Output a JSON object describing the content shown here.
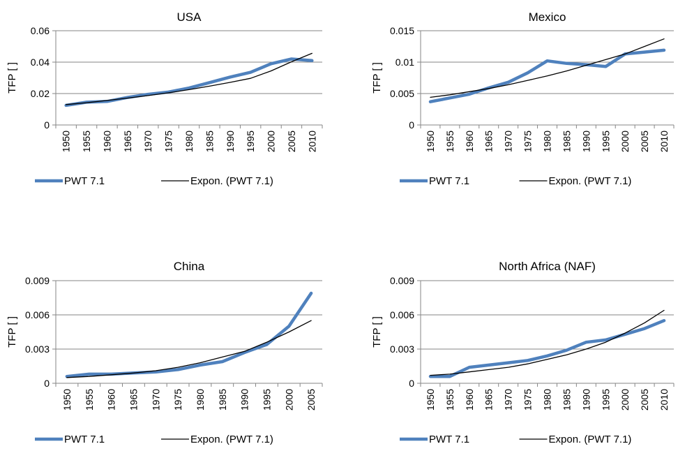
{
  "chart_data": [
    {
      "type": "line",
      "title": "USA",
      "ylabel": "TFP  [ ]",
      "xlabel": "",
      "ylim": [
        0,
        0.06
      ],
      "yticks": [
        0,
        0.02,
        0.04,
        0.06
      ],
      "ytick_labels": [
        "0",
        "0.02",
        "0.04",
        "0.06"
      ],
      "x": [
        1950,
        1955,
        1960,
        1965,
        1970,
        1975,
        1980,
        1985,
        1990,
        1995,
        2000,
        2005,
        2010
      ],
      "grid": "horizontal",
      "legend_position": "bottom",
      "series": [
        {
          "name": "PWT 7.1",
          "color": "#4F81BD",
          "style": "thick",
          "values": [
            0.0125,
            0.0145,
            0.015,
            0.0175,
            0.0195,
            0.021,
            0.0235,
            0.027,
            0.0305,
            0.0335,
            0.039,
            0.042,
            0.041
          ]
        },
        {
          "name": "Expon. (PWT 7.1)",
          "color": "#000000",
          "style": "thin",
          "values": [
            0.013,
            0.0142,
            0.0156,
            0.0171,
            0.0187,
            0.0205,
            0.0225,
            0.0247,
            0.0271,
            0.0297,
            0.0344,
            0.0402,
            0.0456
          ]
        }
      ]
    },
    {
      "type": "line",
      "title": "Mexico",
      "ylabel": "TFP  [ ]",
      "xlabel": "",
      "ylim": [
        0,
        0.015
      ],
      "yticks": [
        0,
        0.005,
        0.01,
        0.015
      ],
      "ytick_labels": [
        "0",
        "0.005",
        "0.01",
        "0.015"
      ],
      "x": [
        1950,
        1955,
        1960,
        1965,
        1970,
        1975,
        1980,
        1985,
        1990,
        1995,
        2000,
        2005,
        2010
      ],
      "grid": "horizontal",
      "legend_position": "bottom",
      "series": [
        {
          "name": "PWT 7.1",
          "color": "#4F81BD",
          "style": "thick",
          "values": [
            0.0037,
            0.0043,
            0.0049,
            0.0059,
            0.0068,
            0.0083,
            0.0102,
            0.0098,
            0.0096,
            0.0093,
            0.0113,
            0.0116,
            0.0119
          ]
        },
        {
          "name": "Expon. (PWT 7.1)",
          "color": "#000000",
          "style": "thin",
          "values": [
            0.0044,
            0.0048,
            0.0053,
            0.0058,
            0.0064,
            0.0071,
            0.0078,
            0.0086,
            0.0095,
            0.0104,
            0.0113,
            0.0125,
            0.0137
          ]
        }
      ]
    },
    {
      "type": "line",
      "title": "China",
      "ylabel": "TFP  [ ]",
      "xlabel": "",
      "ylim": [
        0,
        0.009
      ],
      "yticks": [
        0,
        0.003,
        0.006,
        0.009
      ],
      "ytick_labels": [
        "0",
        "0.003",
        "0.006",
        "0.009"
      ],
      "x": [
        1950,
        1955,
        1960,
        1965,
        1970,
        1975,
        1980,
        1985,
        1990,
        1995,
        2000,
        2005
      ],
      "grid": "horizontal",
      "legend_position": "bottom",
      "series": [
        {
          "name": "PWT 7.1",
          "color": "#4F81BD",
          "style": "thick",
          "values": [
            0.0006,
            0.0008,
            0.0008,
            0.0009,
            0.001,
            0.0012,
            0.0016,
            0.0019,
            0.0027,
            0.0034,
            0.005,
            0.0079
          ]
        },
        {
          "name": "Expon. (PWT 7.1)",
          "color": "#000000",
          "style": "thin",
          "values": [
            0.0005,
            0.0006,
            0.00075,
            0.0009,
            0.0011,
            0.0014,
            0.0018,
            0.0023,
            0.0028,
            0.0036,
            0.0045,
            0.0055
          ]
        }
      ]
    },
    {
      "type": "line",
      "title": "North Africa (NAF)",
      "ylabel": "TFP  [ ]",
      "xlabel": "",
      "ylim": [
        0,
        0.009
      ],
      "yticks": [
        0,
        0.003,
        0.006,
        0.009
      ],
      "ytick_labels": [
        "0",
        "0.003",
        "0.006",
        "0.009"
      ],
      "x": [
        1950,
        1955,
        1960,
        1965,
        1970,
        1975,
        1980,
        1985,
        1990,
        1995,
        2000,
        2005,
        2010
      ],
      "grid": "horizontal",
      "legend_position": "bottom",
      "series": [
        {
          "name": "PWT 7.1",
          "color": "#4F81BD",
          "style": "thick",
          "values": [
            0.0006,
            0.0006,
            0.0014,
            0.0016,
            0.0018,
            0.002,
            0.0024,
            0.0029,
            0.0036,
            0.0038,
            0.0043,
            0.0048,
            0.0055
          ]
        },
        {
          "name": "Expon. (PWT 7.1)",
          "color": "#000000",
          "style": "thin",
          "values": [
            0.0007,
            0.0008,
            0.001,
            0.0012,
            0.0014,
            0.0017,
            0.0021,
            0.0025,
            0.003,
            0.0036,
            0.0044,
            0.0053,
            0.0064
          ]
        }
      ]
    }
  ]
}
